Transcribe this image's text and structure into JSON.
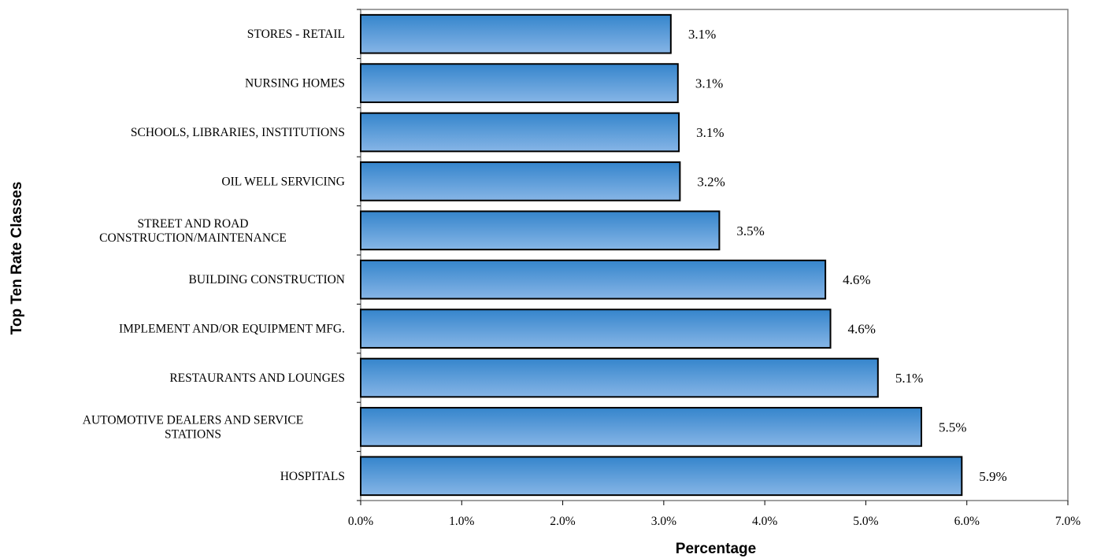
{
  "chart_data": {
    "type": "bar",
    "orientation": "horizontal",
    "categories": [
      "STORES - RETAIL",
      "NURSING HOMES",
      "SCHOOLS, LIBRARIES, INSTITUTIONS",
      "OIL WELL SERVICING",
      "STREET AND ROAD CONSTRUCTION/MAINTENANCE",
      "BUILDING CONSTRUCTION",
      "IMPLEMENT AND/OR EQUIPMENT MFG.",
      "RESTAURANTS AND LOUNGES",
      "AUTOMOTIVE DEALERS AND SERVICE STATIONS",
      "HOSPITALS"
    ],
    "category_lines": [
      [
        "STORES - RETAIL"
      ],
      [
        "NURSING HOMES"
      ],
      [
        "SCHOOLS, LIBRARIES, INSTITUTIONS"
      ],
      [
        "OIL WELL SERVICING"
      ],
      [
        "STREET AND ROAD",
        "CONSTRUCTION/MAINTENANCE"
      ],
      [
        "BUILDING CONSTRUCTION"
      ],
      [
        "IMPLEMENT AND/OR EQUIPMENT MFG."
      ],
      [
        "RESTAURANTS AND LOUNGES"
      ],
      [
        "AUTOMOTIVE DEALERS AND SERVICE",
        "STATIONS"
      ],
      [
        "HOSPITALS"
      ]
    ],
    "values": [
      3.07,
      3.14,
      3.15,
      3.16,
      3.55,
      4.6,
      4.65,
      5.12,
      5.55,
      5.95
    ],
    "data_labels": [
      "3.1%",
      "3.1%",
      "3.1%",
      "3.2%",
      "3.5%",
      "4.6%",
      "4.6%",
      "5.1%",
      "5.5%",
      "5.9%"
    ],
    "xlim": [
      0,
      7
    ],
    "x_ticks": [
      "0.0%",
      "1.0%",
      "2.0%",
      "3.0%",
      "4.0%",
      "5.0%",
      "6.0%",
      "7.0%"
    ],
    "xlabel": "Percentage",
    "ylabel": "Top Ten Rate Classes",
    "title": "",
    "grid": false,
    "legend": "none",
    "colors": {
      "bar_top": "#3585cc",
      "bar_bottom": "#86b5e6",
      "bar_edge": "#000000",
      "axis": "#808080"
    }
  }
}
